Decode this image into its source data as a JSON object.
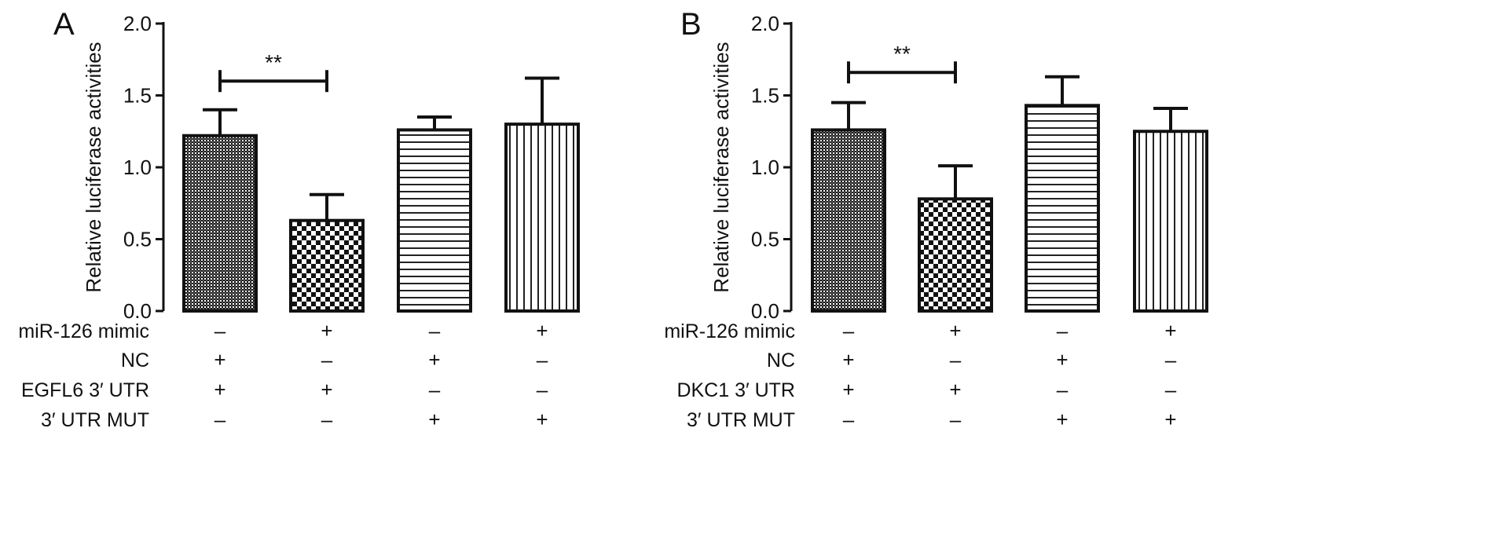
{
  "chart_data": [
    {
      "panel": "A",
      "type": "bar",
      "ylabel": "Relative luciferase activities",
      "ylim": [
        0,
        2.0
      ],
      "yticks": [
        "0.0",
        "0.5",
        "1.0",
        "1.5",
        "2.0"
      ],
      "bars": [
        {
          "value": 1.22,
          "error": 0.18,
          "pattern": "dense-check"
        },
        {
          "value": 0.63,
          "error": 0.18,
          "pattern": "checker"
        },
        {
          "value": 1.26,
          "error": 0.09,
          "pattern": "horizontal-lines"
        },
        {
          "value": 1.3,
          "error": 0.32,
          "pattern": "vertical-lines"
        }
      ],
      "significance": {
        "from": 0,
        "to": 1,
        "label": "**",
        "y": 1.6
      },
      "conditions": [
        {
          "label": "miR-126 mimic",
          "values": [
            "–",
            "+",
            "–",
            "+"
          ]
        },
        {
          "label": "NC",
          "values": [
            "+",
            "–",
            "+",
            "–"
          ]
        },
        {
          "label": "EGFL6 3′ UTR",
          "values": [
            "+",
            "+",
            "–",
            "–"
          ]
        },
        {
          "label": "3′ UTR MUT",
          "values": [
            "–",
            "–",
            "+",
            "+"
          ]
        }
      ]
    },
    {
      "panel": "B",
      "type": "bar",
      "ylabel": "Relative luciferase activities",
      "ylim": [
        0,
        2.0
      ],
      "yticks": [
        "0.0",
        "0.5",
        "1.0",
        "1.5",
        "2.0"
      ],
      "bars": [
        {
          "value": 1.26,
          "error": 0.19,
          "pattern": "dense-check"
        },
        {
          "value": 0.78,
          "error": 0.23,
          "pattern": "checker"
        },
        {
          "value": 1.43,
          "error": 0.2,
          "pattern": "horizontal-lines"
        },
        {
          "value": 1.25,
          "error": 0.16,
          "pattern": "vertical-lines"
        }
      ],
      "significance": {
        "from": 0,
        "to": 1,
        "label": "**",
        "y": 1.66
      },
      "conditions": [
        {
          "label": "miR-126 mimic",
          "values": [
            "–",
            "+",
            "–",
            "+"
          ]
        },
        {
          "label": "NC",
          "values": [
            "+",
            "–",
            "+",
            "–"
          ]
        },
        {
          "label": "DKC1 3′ UTR",
          "values": [
            "+",
            "+",
            "–",
            "–"
          ]
        },
        {
          "label": "3′ UTR MUT",
          "values": [
            "–",
            "–",
            "+",
            "+"
          ]
        }
      ]
    }
  ]
}
